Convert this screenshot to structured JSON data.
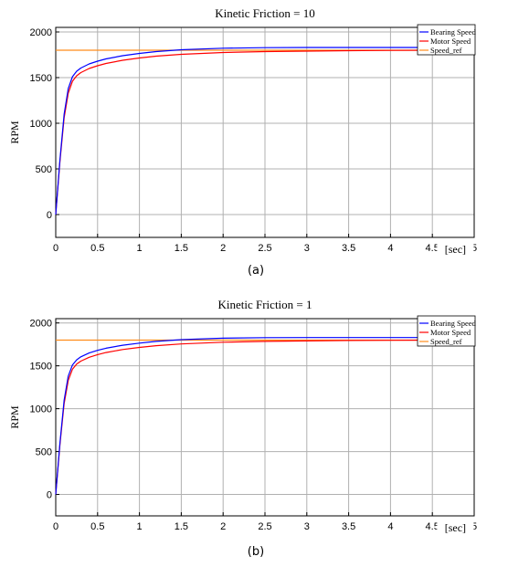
{
  "chart_data": [
    {
      "type": "line",
      "title": "Kinetic Friction = 10",
      "ylabel": "RPM",
      "xunit": "[sec]",
      "caption": "(a)",
      "xlim": [
        0,
        5
      ],
      "ylim": [
        -250,
        2050
      ],
      "xticks": [
        "0",
        "0.5",
        "1",
        "1.5",
        "2",
        "2.5",
        "3",
        "3.5",
        "4",
        "4.5",
        "5"
      ],
      "yticks": [
        "0",
        "500",
        "1000",
        "1500",
        "2000"
      ],
      "grid": true,
      "legend_position": "top-right",
      "series": [
        {
          "name": "Bearing Speed",
          "color": "#0000ff",
          "x": [
            0,
            0.05,
            0.1,
            0.15,
            0.2,
            0.25,
            0.3,
            0.4,
            0.5,
            0.6,
            0.8,
            1.0,
            1.2,
            1.5,
            2.0,
            2.5,
            3.0,
            3.5,
            4.0,
            4.5
          ],
          "y": [
            0,
            600,
            1100,
            1380,
            1510,
            1570,
            1605,
            1650,
            1680,
            1705,
            1740,
            1765,
            1785,
            1805,
            1822,
            1828,
            1830,
            1830,
            1830,
            1830
          ]
        },
        {
          "name": "Motor Speed",
          "color": "#ff0000",
          "x": [
            0,
            0.05,
            0.1,
            0.15,
            0.2,
            0.25,
            0.3,
            0.4,
            0.5,
            0.6,
            0.8,
            1.0,
            1.2,
            1.5,
            2.0,
            2.5,
            3.0,
            3.5,
            4.0,
            4.5,
            5.0
          ],
          "y": [
            0,
            580,
            1060,
            1330,
            1460,
            1520,
            1555,
            1600,
            1630,
            1655,
            1690,
            1715,
            1735,
            1755,
            1775,
            1785,
            1790,
            1795,
            1798,
            1800,
            1800
          ]
        },
        {
          "name": "Speed_ref",
          "color": "#ff8c1a",
          "x": [
            0,
            5
          ],
          "y": [
            1800,
            1800
          ]
        }
      ]
    },
    {
      "type": "line",
      "title": "Kinetic Friction = 1",
      "ylabel": "RPM",
      "xunit": "[sec]",
      "caption": "(b)",
      "xlim": [
        0,
        5
      ],
      "ylim": [
        -250,
        2050
      ],
      "xticks": [
        "0",
        "0.5",
        "1",
        "1.5",
        "2",
        "2.5",
        "3",
        "3.5",
        "4",
        "4.5",
        "5"
      ],
      "yticks": [
        "0",
        "500",
        "1000",
        "1500",
        "2000"
      ],
      "grid": true,
      "legend_position": "top-right",
      "series": [
        {
          "name": "Bearing Speed",
          "color": "#0000ff",
          "x": [
            0,
            0.05,
            0.1,
            0.15,
            0.2,
            0.25,
            0.3,
            0.4,
            0.5,
            0.6,
            0.8,
            1.0,
            1.2,
            1.5,
            2.0,
            2.5,
            3.0,
            3.5,
            4.0,
            4.5,
            5.0
          ],
          "y": [
            0,
            600,
            1100,
            1380,
            1510,
            1570,
            1605,
            1650,
            1680,
            1705,
            1740,
            1765,
            1785,
            1805,
            1822,
            1828,
            1830,
            1830,
            1830,
            1830,
            1830
          ]
        },
        {
          "name": "Motor Speed",
          "color": "#ff0000",
          "x": [
            0,
            0.05,
            0.1,
            0.15,
            0.2,
            0.25,
            0.3,
            0.4,
            0.5,
            0.6,
            0.8,
            1.0,
            1.2,
            1.5,
            2.0,
            2.5,
            3.0,
            3.5,
            4.0,
            4.5,
            5.0
          ],
          "y": [
            0,
            580,
            1060,
            1330,
            1460,
            1520,
            1555,
            1600,
            1630,
            1655,
            1690,
            1715,
            1735,
            1755,
            1775,
            1785,
            1790,
            1795,
            1798,
            1800,
            1800
          ]
        },
        {
          "name": "Speed_ref",
          "color": "#ff8c1a",
          "x": [
            0,
            5
          ],
          "y": [
            1800,
            1800
          ]
        }
      ]
    }
  ]
}
